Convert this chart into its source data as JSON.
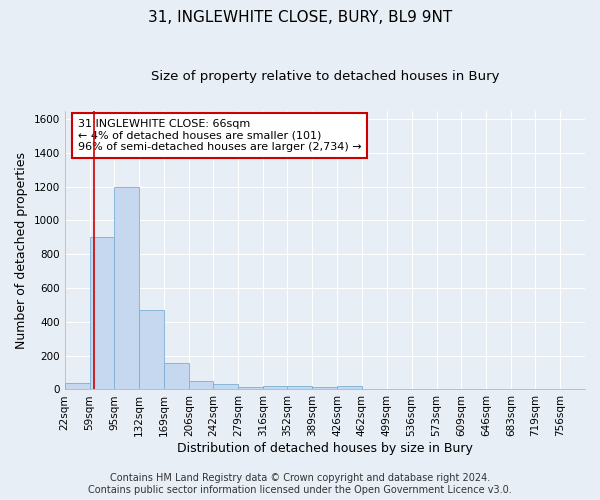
{
  "title": "31, INGLEWHITE CLOSE, BURY, BL9 9NT",
  "subtitle": "Size of property relative to detached houses in Bury",
  "xlabel": "Distribution of detached houses by size in Bury",
  "ylabel": "Number of detached properties",
  "footer_line1": "Contains HM Land Registry data © Crown copyright and database right 2024.",
  "footer_line2": "Contains public sector information licensed under the Open Government Licence v3.0.",
  "bin_labels": [
    "22sqm",
    "59sqm",
    "95sqm",
    "132sqm",
    "169sqm",
    "206sqm",
    "242sqm",
    "279sqm",
    "316sqm",
    "352sqm",
    "389sqm",
    "426sqm",
    "462sqm",
    "499sqm",
    "536sqm",
    "573sqm",
    "609sqm",
    "646sqm",
    "683sqm",
    "719sqm",
    "756sqm"
  ],
  "bin_edges": [
    22,
    59,
    95,
    132,
    169,
    206,
    242,
    279,
    316,
    352,
    389,
    426,
    462,
    499,
    536,
    573,
    609,
    646,
    683,
    719,
    756
  ],
  "bar_heights": [
    40,
    900,
    1200,
    470,
    155,
    50,
    30,
    15,
    20,
    20,
    15,
    20,
    5,
    2,
    2,
    1,
    1,
    0,
    0,
    0,
    0
  ],
  "bar_color": "#c5d8ef",
  "bar_edge_color": "#7bafd4",
  "property_line_x": 66,
  "property_line_color": "#cc0000",
  "annotation_line1": "31 INGLEWHITE CLOSE: 66sqm",
  "annotation_line2": "← 4% of detached houses are smaller (101)",
  "annotation_line3": "96% of semi-detached houses are larger (2,734) →",
  "annotation_box_color": "#cc0000",
  "ylim": [
    0,
    1650
  ],
  "yticks": [
    0,
    200,
    400,
    600,
    800,
    1000,
    1200,
    1400,
    1600
  ],
  "background_color": "#e8eef5",
  "plot_background_color": "#e8eef5",
  "grid_color": "#ffffff",
  "title_fontsize": 11,
  "subtitle_fontsize": 9.5,
  "axis_label_fontsize": 9,
  "tick_fontsize": 7.5,
  "annotation_fontsize": 8,
  "footer_fontsize": 7
}
